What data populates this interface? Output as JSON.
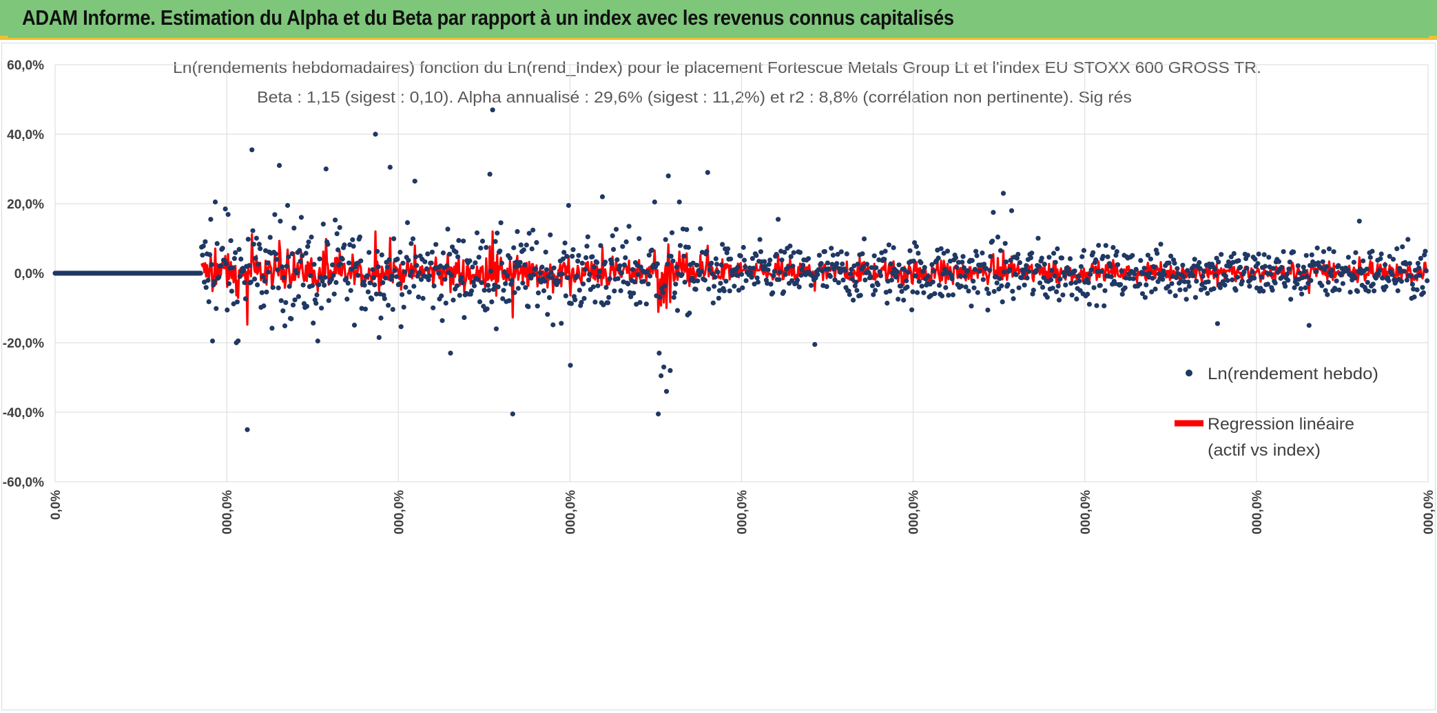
{
  "header": {
    "title": "ADAM Informe. Estimation du Alpha et du Beta par rapport à un index avec les revenus connus capitalisés"
  },
  "colors": {
    "header_bg": "#7dc67a",
    "accent": "#f0c030",
    "points": "#1f3864",
    "regression": "#ff0000",
    "grid": "#d9d9d9"
  },
  "chart_data": {
    "type": "scatter",
    "title_line1": "Ln(rendements hebdomadaires) fonction du Ln(rend_Index) pour le placement Fortescue Metals Group Lt et l'index EU STOXX 600 GROSS TR.",
    "title_line2": "Beta : 1,15 (sigest : 0,10). Alpha annualisé : 29,6% (sigest : 11,2%) et r2 : 8,8% (corrélation non pertinente). Sig rés",
    "ylim": [
      -60,
      60
    ],
    "y_ticks": [
      60,
      40,
      20,
      0,
      -20,
      -40,
      -60
    ],
    "y_tick_labels": [
      "60,0%",
      "40,0%",
      "20,0%",
      "0,0%",
      "-20,0%",
      "-40,0%",
      "-60,0%"
    ],
    "x_tick_labels": [
      "0,0%",
      "000,0%",
      "000,0%",
      "000,0%",
      "000,0%",
      "000,0%",
      "000,0%",
      "000,0%",
      "000,0%"
    ],
    "x_count": 1500,
    "zero_until": 160,
    "legend": [
      {
        "name": "Ln(rendement hebdo)",
        "marker": "dot"
      },
      {
        "name_line1": "Regression linéaire",
        "name_line2": "(actif vs index)",
        "marker": "line"
      }
    ],
    "outliers": [
      {
        "x": 170,
        "y": 15.5
      },
      {
        "x": 172,
        "y": -19.5
      },
      {
        "x": 175,
        "y": 20.5
      },
      {
        "x": 186,
        "y": 18.5
      },
      {
        "x": 198,
        "y": -20
      },
      {
        "x": 210,
        "y": -45
      },
      {
        "x": 215,
        "y": 35.5
      },
      {
        "x": 245,
        "y": 31
      },
      {
        "x": 254,
        "y": 19.5
      },
      {
        "x": 287,
        "y": -19.5
      },
      {
        "x": 296,
        "y": 30
      },
      {
        "x": 350,
        "y": 40
      },
      {
        "x": 354,
        "y": -18.5
      },
      {
        "x": 366,
        "y": 30.5
      },
      {
        "x": 393,
        "y": 26.5
      },
      {
        "x": 432,
        "y": -23
      },
      {
        "x": 475,
        "y": 28.5
      },
      {
        "x": 478,
        "y": 26.5
      },
      {
        "x": 478,
        "y": 47
      },
      {
        "x": 482,
        "y": -16
      },
      {
        "x": 500,
        "y": -40.5
      },
      {
        "x": 561,
        "y": 19.5
      },
      {
        "x": 563,
        "y": -26.5
      },
      {
        "x": 598,
        "y": 22
      },
      {
        "x": 655,
        "y": 20.5
      },
      {
        "x": 660,
        "y": -23
      },
      {
        "x": 665,
        "y": -27
      },
      {
        "x": 662,
        "y": -29.5
      },
      {
        "x": 668,
        "y": -34
      },
      {
        "x": 672,
        "y": -28
      },
      {
        "x": 659,
        "y": -40.5
      },
      {
        "x": 670,
        "y": 28
      },
      {
        "x": 682,
        "y": 20.5
      },
      {
        "x": 713,
        "y": 29
      },
      {
        "x": 790,
        "y": 15.5
      },
      {
        "x": 830,
        "y": -20.5
      },
      {
        "x": 1025,
        "y": 17.5
      },
      {
        "x": 1036,
        "y": 23
      },
      {
        "x": 1045,
        "y": 18
      },
      {
        "x": 1270,
        "y": -14.5
      },
      {
        "x": 1370,
        "y": -15
      },
      {
        "x": 1425,
        "y": 15
      }
    ]
  }
}
